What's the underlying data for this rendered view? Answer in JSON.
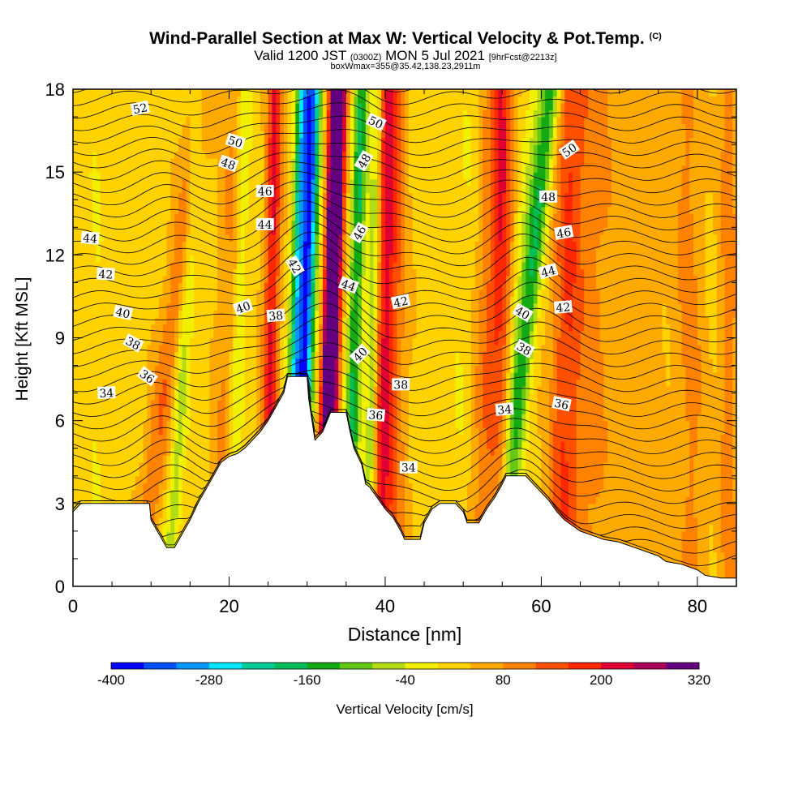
{
  "title": {
    "main": "Wind-Parallel Section at Max W: Vertical Velocity & Pot.Temp.",
    "copyright": "(C)",
    "valid_prefix": "Valid 1200 JST",
    "valid_utc": "(0300Z)",
    "valid_date": "MON 5 Jul 2021",
    "forecast": "[9hrFcst@2213z]",
    "box_info": "boxWmax=355@35.42,138.23,2911m"
  },
  "chart_data": {
    "type": "heatmap",
    "xlabel": "Distance [nm]",
    "ylabel": "Height [Kft MSL]",
    "xlim": [
      0,
      85
    ],
    "ylim": [
      0,
      18
    ],
    "x_ticks": [
      0,
      20,
      40,
      60,
      80
    ],
    "y_ticks": [
      0,
      3,
      6,
      9,
      12,
      15,
      18
    ],
    "colorbar": {
      "label": "Vertical Velocity [cm/s]",
      "tick_labels": [
        "-400",
        "-280",
        "-160",
        "-40",
        "80",
        "200",
        "320"
      ],
      "tick_values": [
        -400,
        -280,
        -160,
        -40,
        80,
        200,
        320
      ],
      "bounds": [
        -400,
        -360,
        -320,
        -280,
        -240,
        -200,
        -160,
        -120,
        -80,
        -40,
        0,
        40,
        80,
        120,
        160,
        200,
        240,
        280,
        320
      ],
      "colors": [
        "#0000ff",
        "#0050ff",
        "#0096ff",
        "#00e6ff",
        "#00cc96",
        "#00be5a",
        "#14aa14",
        "#64c814",
        "#b4dc14",
        "#f0f000",
        "#ffd200",
        "#ffaa00",
        "#ff8200",
        "#ff5000",
        "#ff2800",
        "#e10032",
        "#aa005a",
        "#640080"
      ]
    },
    "terrain": [
      [
        0,
        2.7
      ],
      [
        1,
        3.0
      ],
      [
        9.8,
        3.0
      ],
      [
        10,
        2.4
      ],
      [
        11,
        1.9
      ],
      [
        12,
        1.4
      ],
      [
        13,
        1.4
      ],
      [
        14,
        1.9
      ],
      [
        15,
        2.4
      ],
      [
        16,
        3.0
      ],
      [
        17,
        3.5
      ],
      [
        18,
        4.0
      ],
      [
        19,
        4.5
      ],
      [
        20,
        4.7
      ],
      [
        21,
        4.8
      ],
      [
        22,
        5.0
      ],
      [
        23,
        5.3
      ],
      [
        24,
        5.6
      ],
      [
        25,
        6.0
      ],
      [
        26,
        6.5
      ],
      [
        27,
        7.0
      ],
      [
        27.5,
        7.6
      ],
      [
        30,
        7.6
      ],
      [
        30.2,
        6.8
      ],
      [
        31,
        5.3
      ],
      [
        32,
        5.6
      ],
      [
        33,
        6.3
      ],
      [
        35,
        6.3
      ],
      [
        35.5,
        5.6
      ],
      [
        36,
        5.0
      ],
      [
        37,
        4.4
      ],
      [
        37.5,
        3.7
      ],
      [
        38,
        3.6
      ],
      [
        39,
        3.2
      ],
      [
        40,
        2.8
      ],
      [
        41,
        2.5
      ],
      [
        42,
        2.0
      ],
      [
        42.5,
        1.7
      ],
      [
        44.5,
        1.7
      ],
      [
        45,
        2.3
      ],
      [
        46,
        2.8
      ],
      [
        47,
        3.0
      ],
      [
        49,
        3.0
      ],
      [
        50,
        2.7
      ],
      [
        50.5,
        2.3
      ],
      [
        52,
        2.3
      ],
      [
        53,
        2.8
      ],
      [
        54,
        3.2
      ],
      [
        55,
        3.7
      ],
      [
        55.5,
        4.0
      ],
      [
        58,
        4.0
      ],
      [
        59,
        3.7
      ],
      [
        60,
        3.4
      ],
      [
        61,
        3.1
      ],
      [
        62,
        2.7
      ],
      [
        63,
        2.4
      ],
      [
        64,
        2.2
      ],
      [
        65,
        2.0
      ],
      [
        66,
        1.9
      ],
      [
        67,
        1.8
      ],
      [
        68,
        1.7
      ],
      [
        70,
        1.6
      ],
      [
        72,
        1.4
      ],
      [
        73,
        1.3
      ],
      [
        75,
        1.1
      ],
      [
        76,
        0.9
      ],
      [
        78,
        0.8
      ],
      [
        80,
        0.6
      ],
      [
        81,
        0.4
      ],
      [
        83,
        0.3
      ],
      [
        85,
        0.3
      ]
    ],
    "contour_labels": [
      {
        "text": "52",
        "x": 8.6,
        "y": 17.3,
        "angle": -12
      },
      {
        "text": "50",
        "x": 20.8,
        "y": 16.1,
        "angle": 18
      },
      {
        "text": "48",
        "x": 19.9,
        "y": 15.3,
        "angle": 20
      },
      {
        "text": "46",
        "x": 24.6,
        "y": 14.3,
        "angle": 0
      },
      {
        "text": "44",
        "x": 24.6,
        "y": 13.1,
        "angle": 0
      },
      {
        "text": "44",
        "x": 2.2,
        "y": 12.6,
        "angle": 5
      },
      {
        "text": "42",
        "x": 4.2,
        "y": 11.3,
        "angle": 3
      },
      {
        "text": "40",
        "x": 6.4,
        "y": 9.9,
        "angle": 12
      },
      {
        "text": "38",
        "x": 7.7,
        "y": 8.8,
        "angle": 28
      },
      {
        "text": "36",
        "x": 9.5,
        "y": 7.6,
        "angle": 35
      },
      {
        "text": "34",
        "x": 4.3,
        "y": 7.0,
        "angle": -3
      },
      {
        "text": "40",
        "x": 21.8,
        "y": 10.1,
        "angle": -20
      },
      {
        "text": "38",
        "x": 26.0,
        "y": 9.8,
        "angle": -5
      },
      {
        "text": "42",
        "x": 28.4,
        "y": 11.6,
        "angle": 60
      },
      {
        "text": "50",
        "x": 38.8,
        "y": 16.8,
        "angle": 25
      },
      {
        "text": "48",
        "x": 37.3,
        "y": 15.4,
        "angle": -60
      },
      {
        "text": "46",
        "x": 36.7,
        "y": 12.8,
        "angle": -60
      },
      {
        "text": "44",
        "x": 35.3,
        "y": 10.9,
        "angle": 20
      },
      {
        "text": "42",
        "x": 42.0,
        "y": 10.3,
        "angle": -12
      },
      {
        "text": "40",
        "x": 36.8,
        "y": 8.4,
        "angle": -45
      },
      {
        "text": "38",
        "x": 42.0,
        "y": 7.3,
        "angle": 0
      },
      {
        "text": "36",
        "x": 38.8,
        "y": 6.2,
        "angle": 5
      },
      {
        "text": "34",
        "x": 43.0,
        "y": 4.3,
        "angle": 0
      },
      {
        "text": "50",
        "x": 63.6,
        "y": 15.8,
        "angle": -35
      },
      {
        "text": "48",
        "x": 60.9,
        "y": 14.1,
        "angle": 0
      },
      {
        "text": "46",
        "x": 62.9,
        "y": 12.8,
        "angle": -10
      },
      {
        "text": "44",
        "x": 60.9,
        "y": 11.4,
        "angle": -15
      },
      {
        "text": "42",
        "x": 62.8,
        "y": 10.1,
        "angle": -5
      },
      {
        "text": "40",
        "x": 57.6,
        "y": 9.9,
        "angle": 30
      },
      {
        "text": "38",
        "x": 57.8,
        "y": 8.6,
        "angle": 30
      },
      {
        "text": "36",
        "x": 62.6,
        "y": 6.6,
        "angle": 12
      },
      {
        "text": "34",
        "x": 55.3,
        "y": 6.4,
        "angle": -5
      }
    ]
  }
}
